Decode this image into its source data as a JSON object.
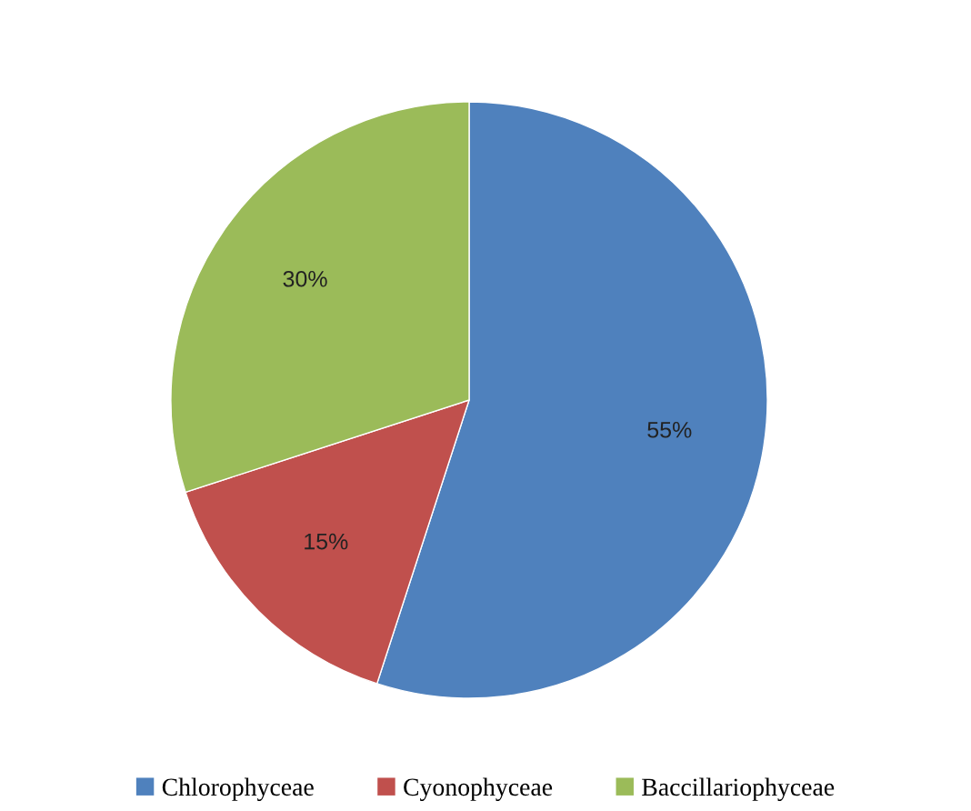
{
  "chart_data": {
    "type": "pie",
    "categories": [
      "Chlorophyceae",
      "Cyonophyceae",
      "Baccillariophyceae"
    ],
    "values": [
      55,
      15,
      30
    ],
    "colors": [
      "#4f81bd",
      "#c0504d",
      "#9bbb59"
    ],
    "value_labels": [
      "55%",
      "15%",
      "30%"
    ],
    "legend": "bottom"
  }
}
